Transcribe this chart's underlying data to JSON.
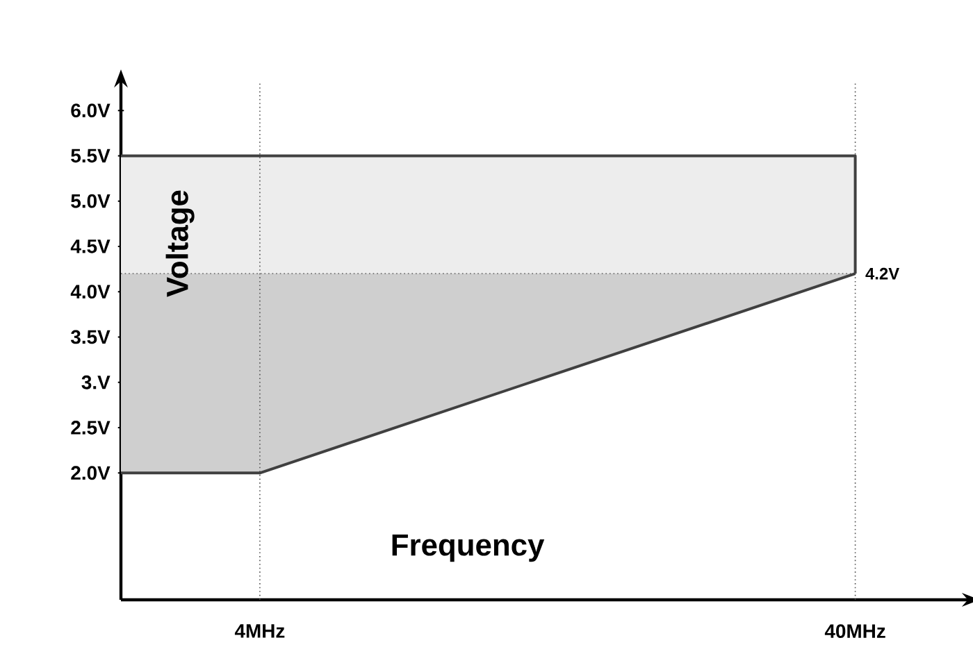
{
  "chart_data": {
    "type": "line",
    "xlabel": "Frequency",
    "ylabel": "Voltage",
    "xlim": [
      -4.4,
      46.7
    ],
    "ylim": [
      0.6,
      6.3
    ],
    "xticks": [
      {
        "value": 4,
        "label": "4MHz"
      },
      {
        "value": 40,
        "label": "40MHz"
      }
    ],
    "yticks": [
      {
        "value": 2.0,
        "label": "2.0V"
      },
      {
        "value": 2.5,
        "label": "2.5V"
      },
      {
        "value": 3.0,
        "label": "3.V"
      },
      {
        "value": 3.5,
        "label": "3.5V"
      },
      {
        "value": 4.0,
        "label": "4.0V"
      },
      {
        "value": 4.5,
        "label": "4.5V"
      },
      {
        "value": 5.0,
        "label": "5.0V"
      },
      {
        "value": 5.5,
        "label": "5.5V"
      },
      {
        "value": 6.0,
        "label": "6.0V"
      }
    ],
    "series": [
      {
        "color": "#404040",
        "x": [
          -4.4,
          40,
          40
        ],
        "values": [
          5.5,
          5.5,
          4.2
        ],
        "lower": [
          4.2,
          4.2,
          4.2
        ],
        "upper": [
          5.5,
          5.5,
          4.2
        ]
      },
      {
        "color": "#404040",
        "x": [
          -4.4,
          4,
          40
        ],
        "values": [
          2.0,
          2.0,
          4.2
        ],
        "lower": [
          2.0,
          2.0,
          4.2
        ],
        "upper": [
          4.2,
          4.2,
          4.2
        ]
      }
    ],
    "ref_lines": [
      {
        "axis": "x",
        "value": 4,
        "line_style": "dotted",
        "color": "#505050"
      },
      {
        "axis": "x",
        "value": 40,
        "line_style": "dotted",
        "color": "#505050"
      },
      {
        "axis": "y",
        "value": 4.2,
        "label": "4.2V",
        "line_style": "dotted",
        "color": "#707070"
      }
    ],
    "grid": false,
    "marker": "none",
    "line_style": "solid"
  }
}
